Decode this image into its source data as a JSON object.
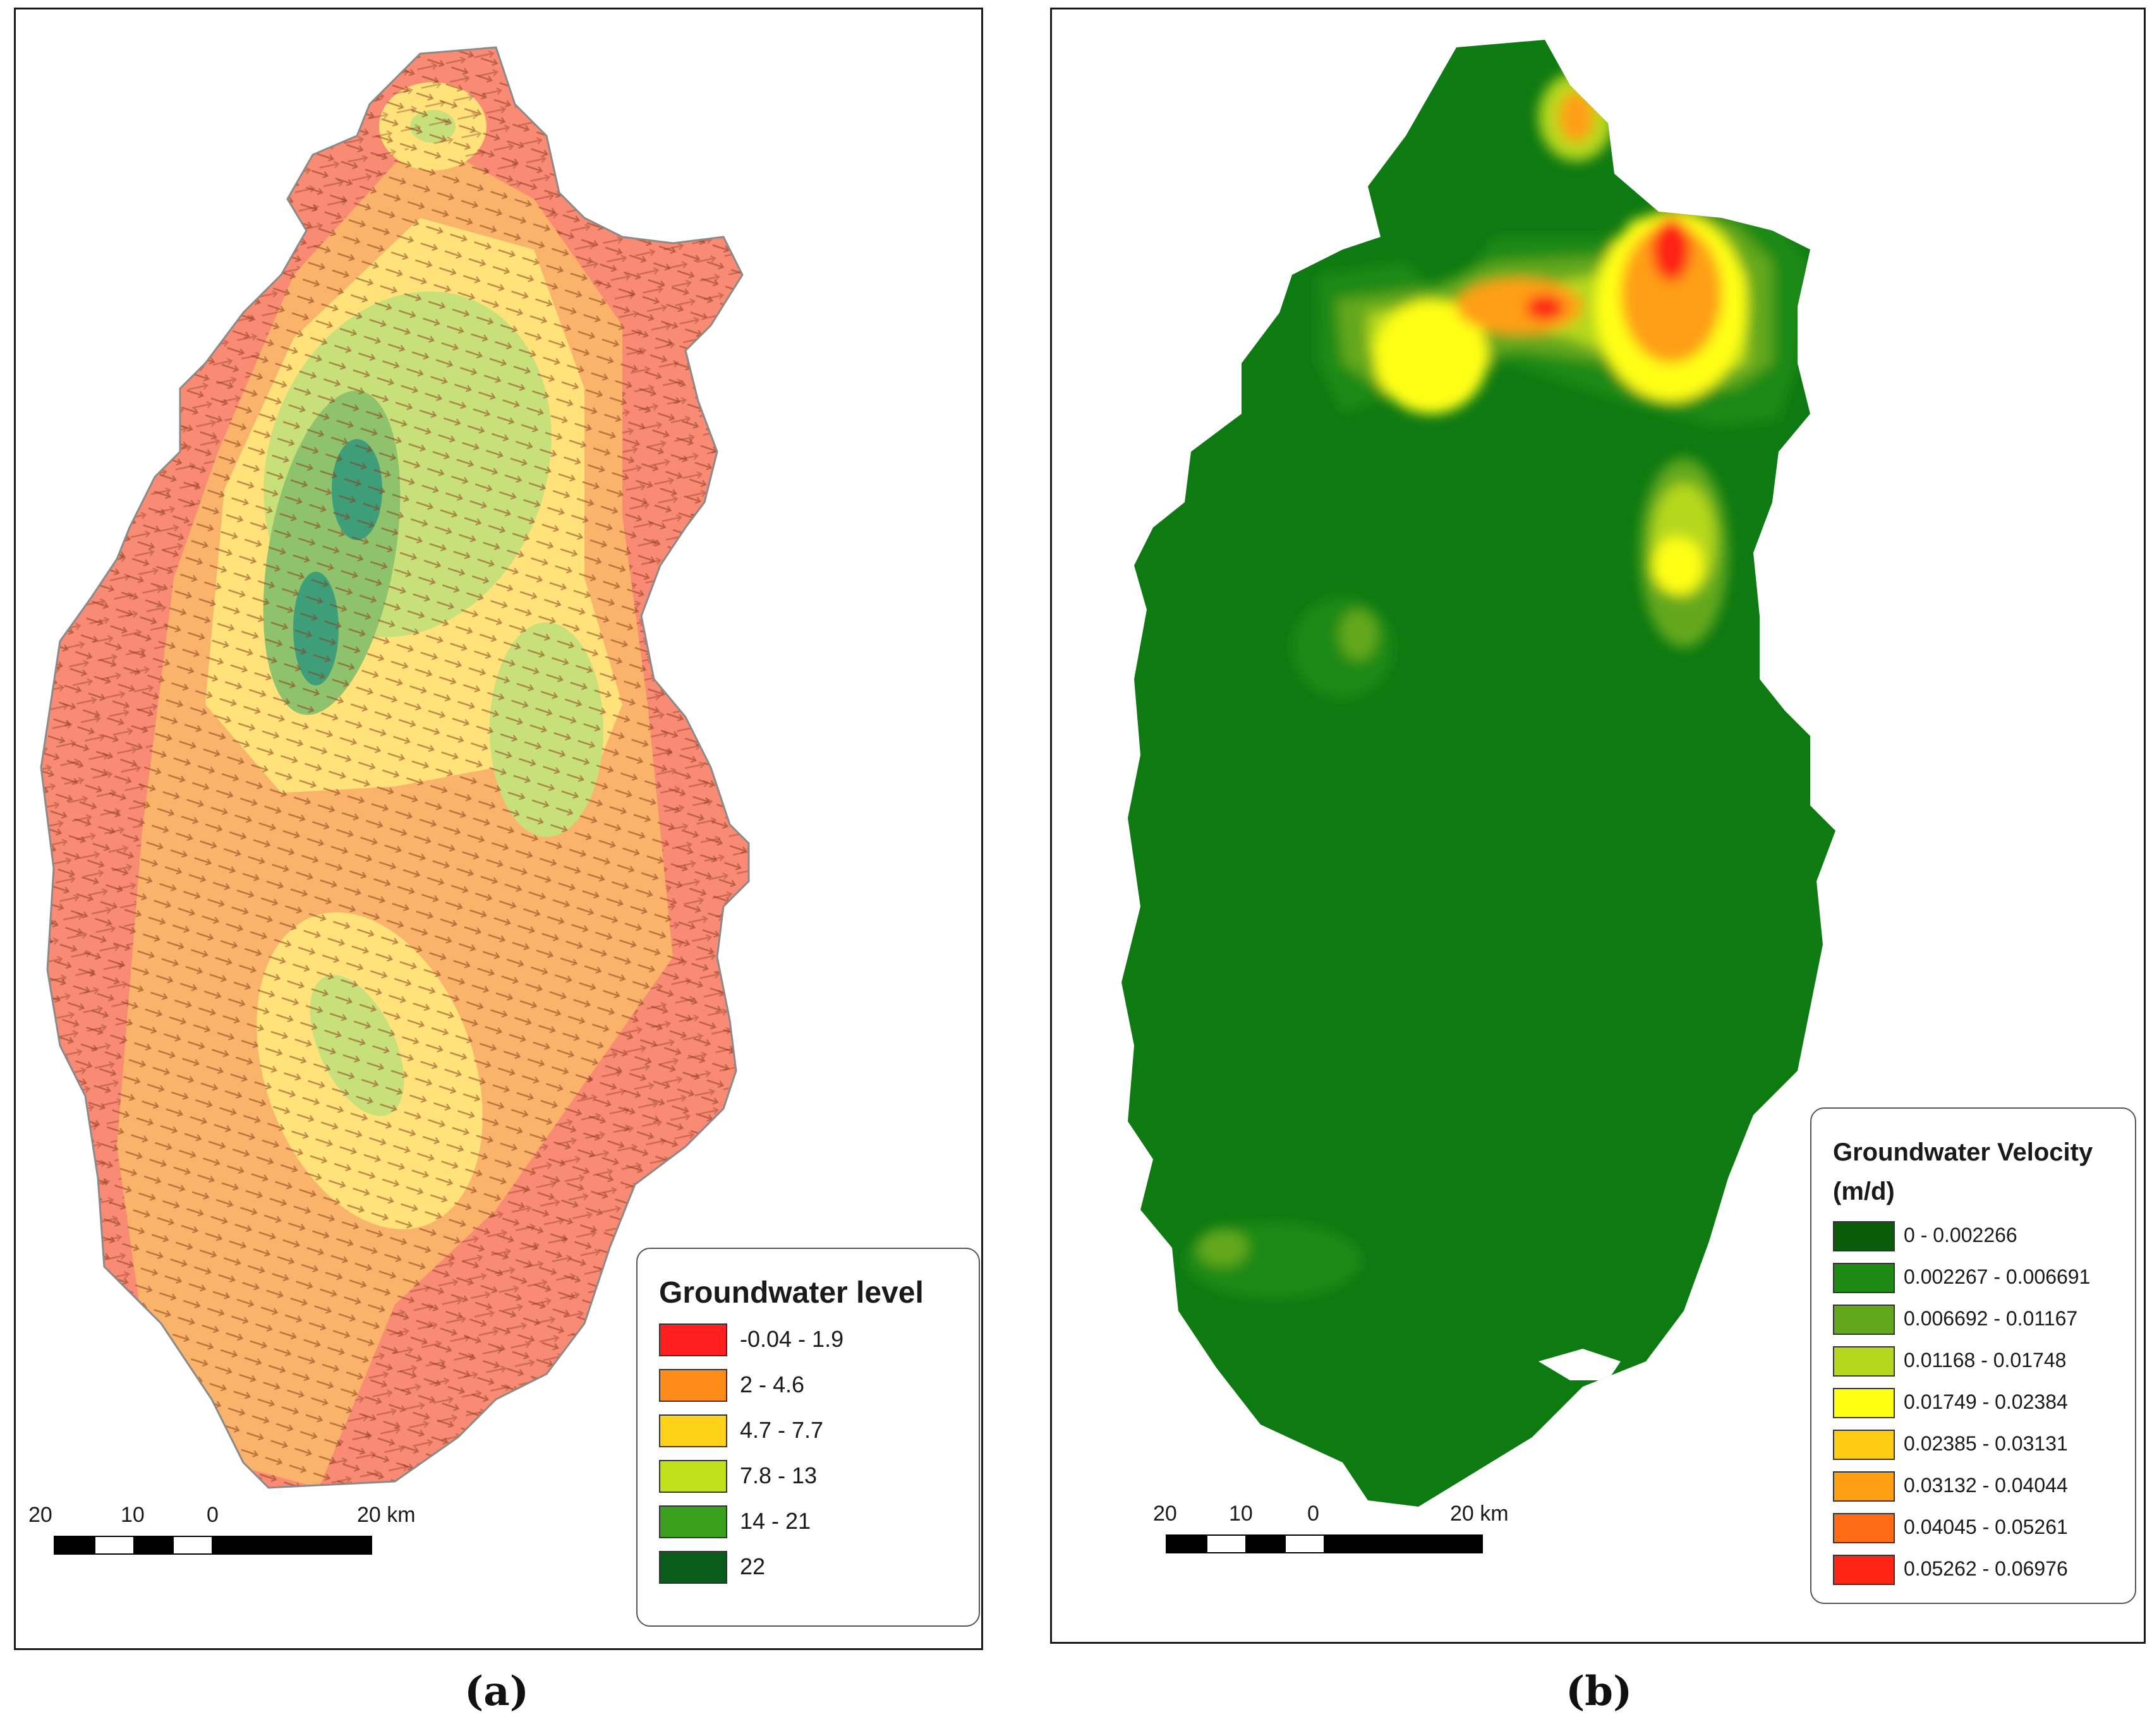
{
  "panels": [
    {
      "id": "a",
      "caption": "(a)",
      "legend_title": "Groundwater level",
      "legend": [
        {
          "label": "-0.04 - 1.9",
          "color": "#ff1f1f"
        },
        {
          "label": "2 - 4.6",
          "color": "#ff8c1a"
        },
        {
          "label": "4.7 - 7.7",
          "color": "#ffd21a"
        },
        {
          "label": "7.8 - 13",
          "color": "#bfe01a"
        },
        {
          "label": "14 - 21",
          "color": "#3aa01e"
        },
        {
          "label": "22",
          "color": "#0a5c1a"
        }
      ],
      "scale_labels": [
        "20",
        "10",
        "0",
        "20 km"
      ]
    },
    {
      "id": "b",
      "caption": "(b)",
      "legend_title": "Groundwater Velocity (m/d)",
      "legend": [
        {
          "label": "0 - 0.002266",
          "color": "#0a5c0a"
        },
        {
          "label": "0.002267 - 0.006691",
          "color": "#1e8a14"
        },
        {
          "label": "0.006692 - 0.01167",
          "color": "#63a81a"
        },
        {
          "label": "0.01168 - 0.01748",
          "color": "#b5d81e"
        },
        {
          "label": "0.01749 - 0.02384",
          "color": "#ffff14"
        },
        {
          "label": "0.02385 - 0.03131",
          "color": "#ffcc14"
        },
        {
          "label": "0.03132 - 0.04044",
          "color": "#ff9f14"
        },
        {
          "label": "0.04045 - 0.05261",
          "color": "#ff6a14"
        },
        {
          "label": "0.05262 - 0.06976",
          "color": "#ff2414"
        }
      ],
      "scale_labels": [
        "20",
        "10",
        "0",
        "20 km"
      ]
    }
  ],
  "map_colors": {
    "a_level_1": "#f98a73",
    "a_level_2": "#f9b36a",
    "a_level_3": "#ffe279",
    "a_level_4": "#c8e07a",
    "a_level_5": "#8fc26c",
    "a_level_6": "#3f9e7a",
    "b_background": "#0e7a12",
    "b_low": "#1e8a14",
    "b_mid": "#63a81a",
    "b_light": "#b5d81e",
    "b_yellow": "#ffff14",
    "b_orange": "#ff9f14",
    "b_red": "#ff2414",
    "arrow_inner": "#8b3a1a",
    "arrow_outer": "#8a8a8a"
  }
}
